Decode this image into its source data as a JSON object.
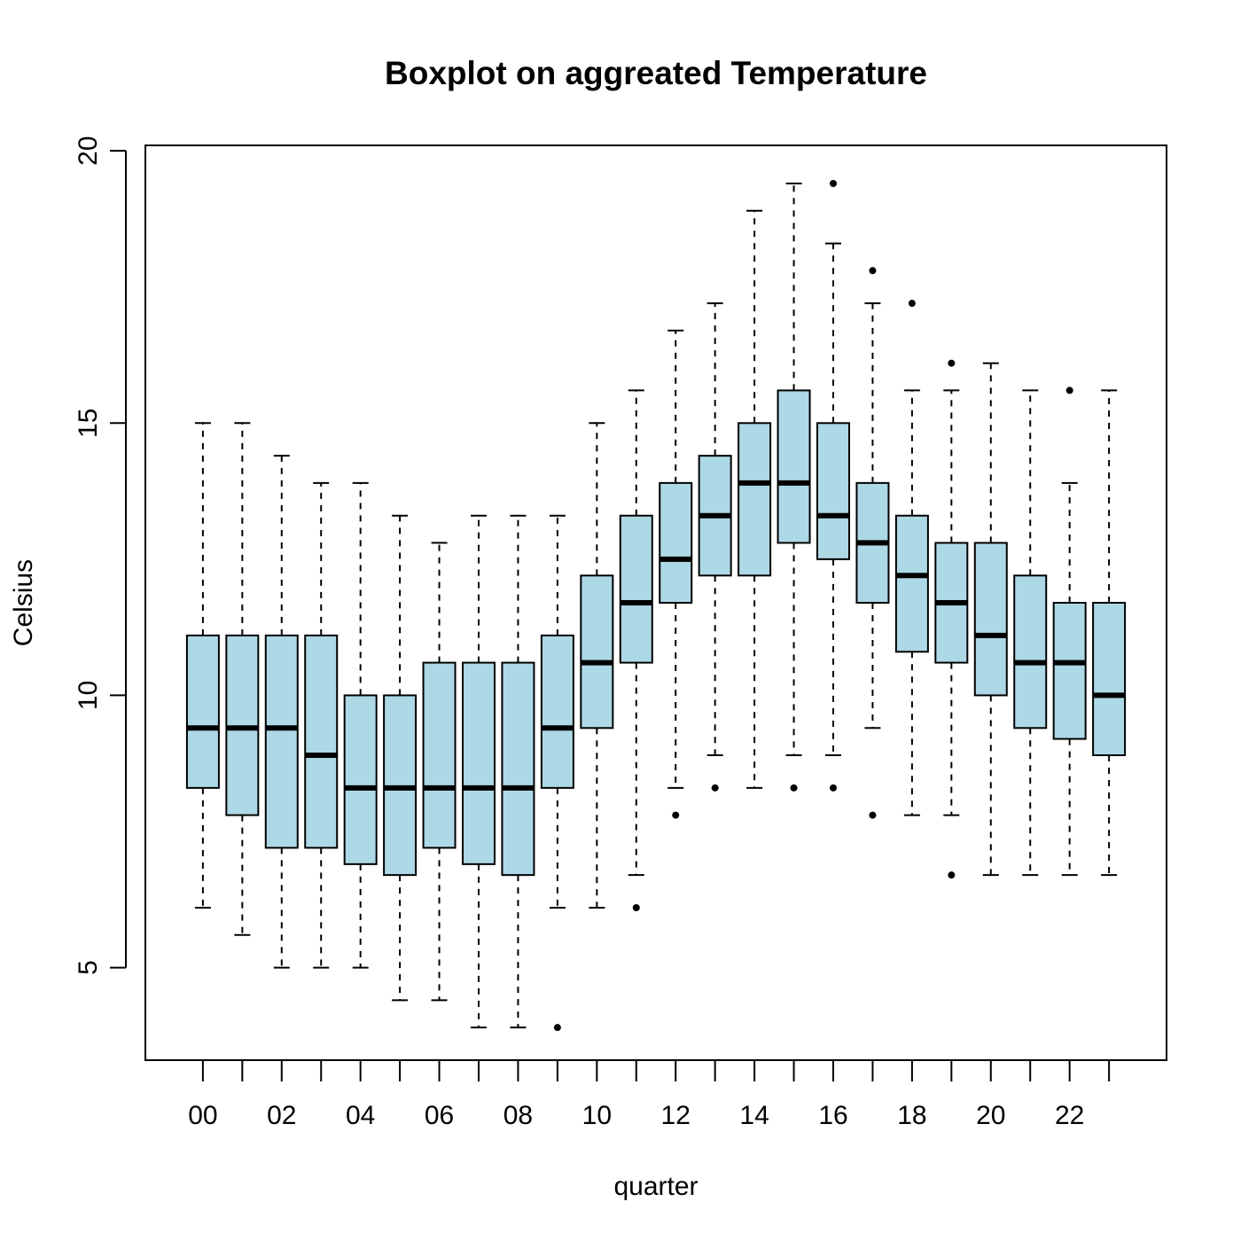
{
  "chart_data": {
    "type": "boxplot",
    "title": "Boxplot on aggreated Temperature",
    "xlabel": "quarter",
    "ylabel": "Celsius",
    "ylim": [
      3.3,
      20.1
    ],
    "y_ticks": [
      5,
      10,
      15,
      20
    ],
    "x_tick_labels": [
      "00",
      "02",
      "04",
      "06",
      "08",
      "10",
      "12",
      "14",
      "16",
      "18",
      "20",
      "22"
    ],
    "box_fill": "#ADD8E6",
    "grid": false,
    "legend": "none",
    "categories": [
      "00",
      "01",
      "02",
      "03",
      "04",
      "05",
      "06",
      "07",
      "08",
      "09",
      "10",
      "11",
      "12",
      "13",
      "14",
      "15",
      "16",
      "17",
      "18",
      "19",
      "20",
      "21",
      "22",
      "23"
    ],
    "boxes": [
      {
        "whisker_low": 6.1,
        "q1": 8.3,
        "median": 9.4,
        "q3": 11.1,
        "whisker_high": 15.0,
        "outliers": []
      },
      {
        "whisker_low": 5.6,
        "q1": 7.8,
        "median": 9.4,
        "q3": 11.1,
        "whisker_high": 15.0,
        "outliers": []
      },
      {
        "whisker_low": 5.0,
        "q1": 7.2,
        "median": 9.4,
        "q3": 11.1,
        "whisker_high": 14.4,
        "outliers": []
      },
      {
        "whisker_low": 5.0,
        "q1": 7.2,
        "median": 8.9,
        "q3": 11.1,
        "whisker_high": 13.9,
        "outliers": []
      },
      {
        "whisker_low": 5.0,
        "q1": 6.9,
        "median": 8.3,
        "q3": 10.0,
        "whisker_high": 13.9,
        "outliers": []
      },
      {
        "whisker_low": 4.4,
        "q1": 6.7,
        "median": 8.3,
        "q3": 10.0,
        "whisker_high": 13.3,
        "outliers": []
      },
      {
        "whisker_low": 4.4,
        "q1": 7.2,
        "median": 8.3,
        "q3": 10.6,
        "whisker_high": 12.8,
        "outliers": []
      },
      {
        "whisker_low": 3.9,
        "q1": 6.9,
        "median": 8.3,
        "q3": 10.6,
        "whisker_high": 13.3,
        "outliers": []
      },
      {
        "whisker_low": 3.9,
        "q1": 6.7,
        "median": 8.3,
        "q3": 10.6,
        "whisker_high": 13.3,
        "outliers": []
      },
      {
        "whisker_low": 6.1,
        "q1": 8.3,
        "median": 9.4,
        "q3": 11.1,
        "whisker_high": 13.3,
        "outliers": [
          3.9
        ]
      },
      {
        "whisker_low": 6.1,
        "q1": 9.4,
        "median": 10.6,
        "q3": 12.2,
        "whisker_high": 15.0,
        "outliers": []
      },
      {
        "whisker_low": 6.7,
        "q1": 10.6,
        "median": 11.7,
        "q3": 13.3,
        "whisker_high": 15.6,
        "outliers": [
          6.1
        ]
      },
      {
        "whisker_low": 8.3,
        "q1": 11.7,
        "median": 12.5,
        "q3": 13.9,
        "whisker_high": 16.7,
        "outliers": [
          7.8
        ]
      },
      {
        "whisker_low": 8.9,
        "q1": 12.2,
        "median": 13.3,
        "q3": 14.4,
        "whisker_high": 17.2,
        "outliers": [
          8.3
        ]
      },
      {
        "whisker_low": 8.3,
        "q1": 12.2,
        "median": 13.9,
        "q3": 15.0,
        "whisker_high": 18.9,
        "outliers": []
      },
      {
        "whisker_low": 8.9,
        "q1": 12.8,
        "median": 13.9,
        "q3": 15.6,
        "whisker_high": 19.4,
        "outliers": [
          8.3
        ]
      },
      {
        "whisker_low": 8.9,
        "q1": 12.5,
        "median": 13.3,
        "q3": 15.0,
        "whisker_high": 18.3,
        "outliers": [
          8.3,
          19.4
        ]
      },
      {
        "whisker_low": 9.4,
        "q1": 11.7,
        "median": 12.8,
        "q3": 13.9,
        "whisker_high": 17.2,
        "outliers": [
          7.8,
          17.8
        ]
      },
      {
        "whisker_low": 7.8,
        "q1": 10.8,
        "median": 12.2,
        "q3": 13.3,
        "whisker_high": 15.6,
        "outliers": [
          17.2
        ]
      },
      {
        "whisker_low": 7.8,
        "q1": 10.6,
        "median": 11.7,
        "q3": 12.8,
        "whisker_high": 15.6,
        "outliers": [
          6.7,
          16.1
        ]
      },
      {
        "whisker_low": 6.7,
        "q1": 10.0,
        "median": 11.1,
        "q3": 12.8,
        "whisker_high": 16.1,
        "outliers": []
      },
      {
        "whisker_low": 6.7,
        "q1": 9.4,
        "median": 10.6,
        "q3": 12.2,
        "whisker_high": 15.6,
        "outliers": []
      },
      {
        "whisker_low": 6.7,
        "q1": 9.2,
        "median": 10.6,
        "q3": 11.7,
        "whisker_high": 13.9,
        "outliers": [
          15.6
        ]
      },
      {
        "whisker_low": 6.7,
        "q1": 8.9,
        "median": 10.0,
        "q3": 11.7,
        "whisker_high": 15.6,
        "outliers": []
      }
    ]
  }
}
